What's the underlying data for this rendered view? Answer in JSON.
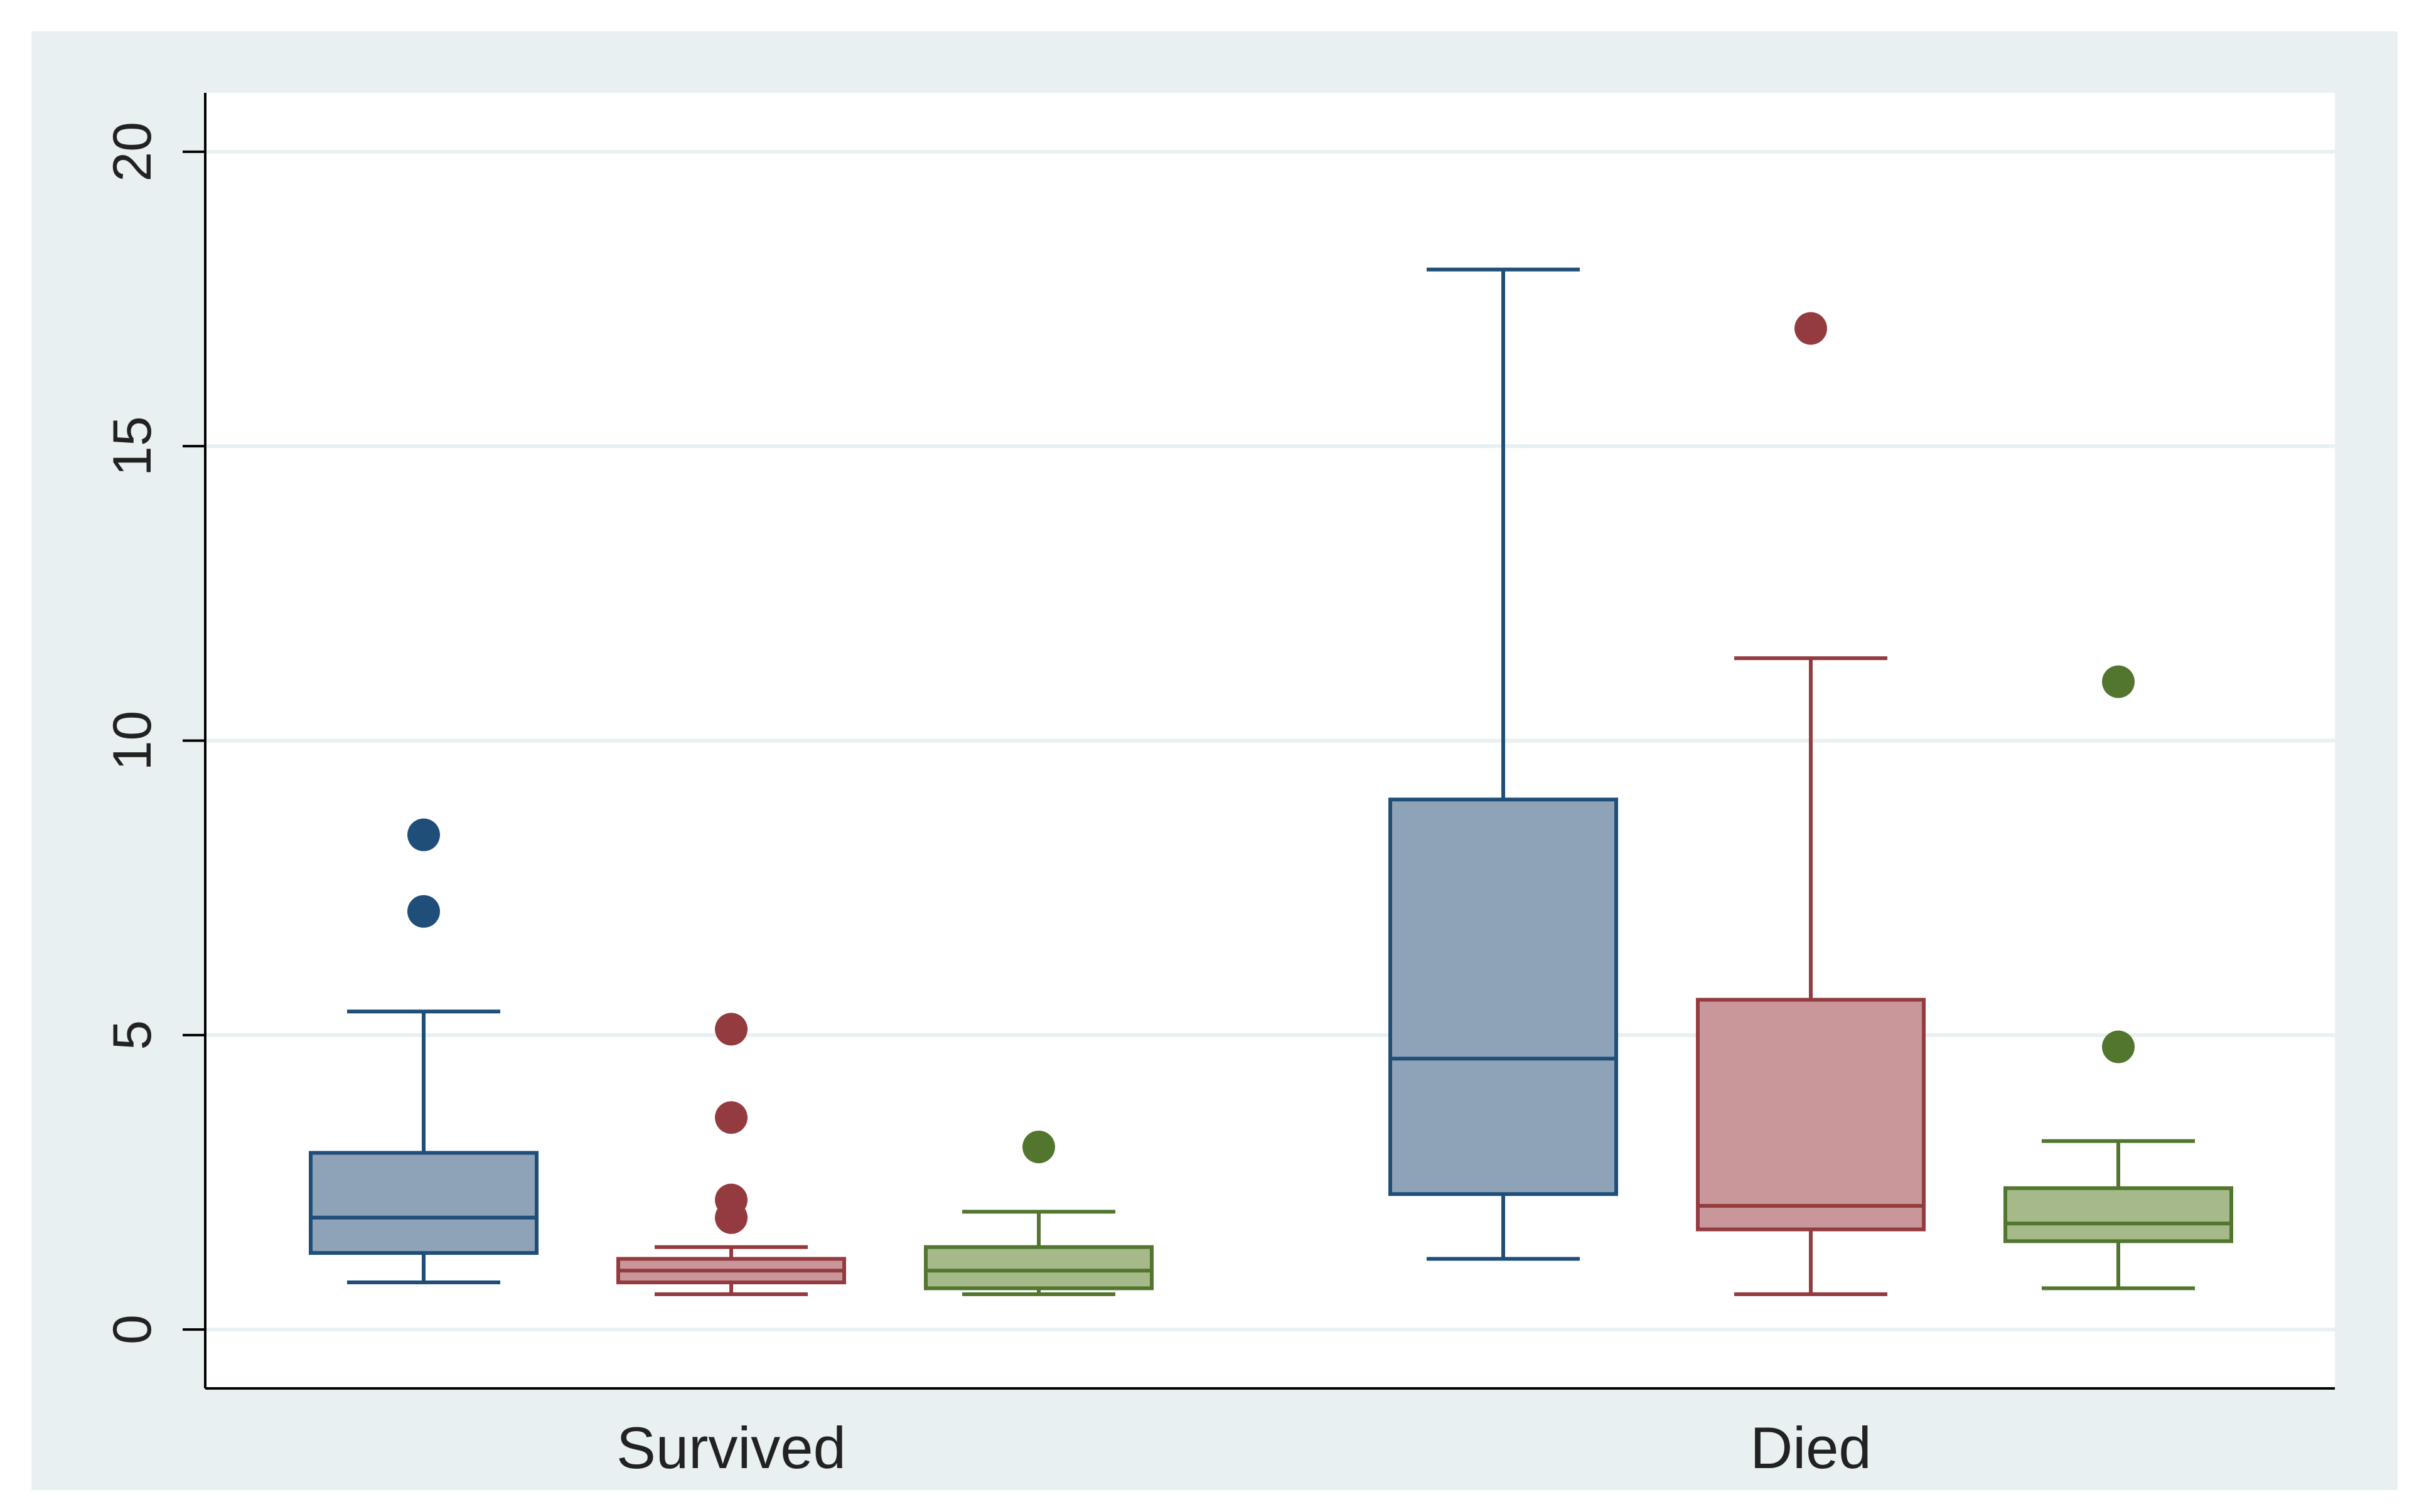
{
  "chart_data": {
    "type": "box",
    "groups": [
      "Survived",
      "Died"
    ],
    "ylim": [
      -1,
      21
    ],
    "yticks": [
      0,
      5,
      10,
      15,
      20
    ],
    "grid": true,
    "legend": "none",
    "series": [
      {
        "color": "#1f4e79",
        "fill": "#8fa3b8",
        "boxes": [
          {
            "group": "Survived",
            "whisker_low": 0.8,
            "q1": 1.3,
            "median": 1.9,
            "q3": 3.0,
            "whisker_high": 5.4,
            "outliers": [
              7.1,
              8.4
            ]
          },
          {
            "group": "Died",
            "whisker_low": 1.2,
            "q1": 2.3,
            "median": 4.6,
            "q3": 9.0,
            "whisker_high": 18.0,
            "outliers": []
          }
        ]
      },
      {
        "color": "#943b3f",
        "fill": "#c9979a",
        "boxes": [
          {
            "group": "Survived",
            "whisker_low": 0.6,
            "q1": 0.8,
            "median": 1.0,
            "q3": 1.2,
            "whisker_high": 1.4,
            "outliers": [
              1.9,
              2.2,
              3.6,
              5.1
            ]
          },
          {
            "group": "Died",
            "whisker_low": 0.6,
            "q1": 1.7,
            "median": 2.1,
            "q3": 5.6,
            "whisker_high": 11.4,
            "outliers": [
              17.0
            ]
          }
        ]
      },
      {
        "color": "#52762e",
        "fill": "#a6b98a",
        "boxes": [
          {
            "group": "Survived",
            "whisker_low": 0.6,
            "q1": 0.7,
            "median": 1.0,
            "q3": 1.4,
            "whisker_high": 2.0,
            "outliers": [
              3.1
            ]
          },
          {
            "group": "Died",
            "whisker_low": 0.7,
            "q1": 1.5,
            "median": 1.8,
            "q3": 2.4,
            "whisker_high": 3.2,
            "outliers": [
              4.8,
              11.0
            ]
          }
        ]
      }
    ]
  },
  "colors": {
    "outer_background": "#e9f0f2",
    "plot_background": "#ffffff",
    "gridline": "#e9f0f2",
    "axis": "#000000"
  }
}
